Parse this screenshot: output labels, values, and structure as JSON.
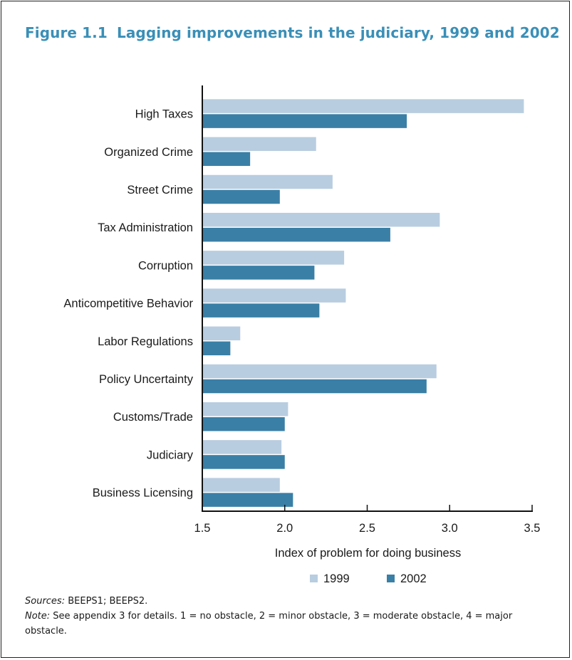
{
  "figure": {
    "number": "Figure 1.1",
    "title": "Lagging improvements in the judiciary, 1999 and 2002"
  },
  "chart_data": {
    "type": "bar",
    "orientation": "horizontal",
    "categories": [
      "High Taxes",
      "Organized Crime",
      "Street Crime",
      "Tax Administration",
      "Corruption",
      "Anticompetitive Behavior",
      "Labor Regulations",
      "Policy Uncertainty",
      "Customs/Trade",
      "Judiciary",
      "Business Licensing"
    ],
    "series": [
      {
        "name": "1999",
        "color": "#b8cde0",
        "values": [
          3.45,
          2.19,
          2.29,
          2.94,
          2.36,
          2.37,
          1.73,
          2.92,
          2.02,
          1.98,
          1.97
        ]
      },
      {
        "name": "2002",
        "color": "#3a7fa6",
        "values": [
          2.74,
          1.79,
          1.97,
          2.64,
          2.18,
          2.21,
          1.67,
          2.86,
          2.0,
          2.0,
          2.05
        ]
      }
    ],
    "xlabel": "Index of problem for doing business",
    "xlim": [
      1.5,
      3.5
    ],
    "ticks": [
      "1.5",
      "2.0",
      "2.5",
      "3.0",
      "3.5"
    ],
    "legend_position": "bottom",
    "grid": false
  },
  "notes": {
    "sources_label": "Sources:",
    "sources_text": "BEEPS1; BEEPS2.",
    "note_label": "Note:",
    "note_text": "See appendix 3 for details. 1 = no obstacle, 2 = minor obstacle, 3 = moderate obstacle, 4 = major obstacle."
  }
}
